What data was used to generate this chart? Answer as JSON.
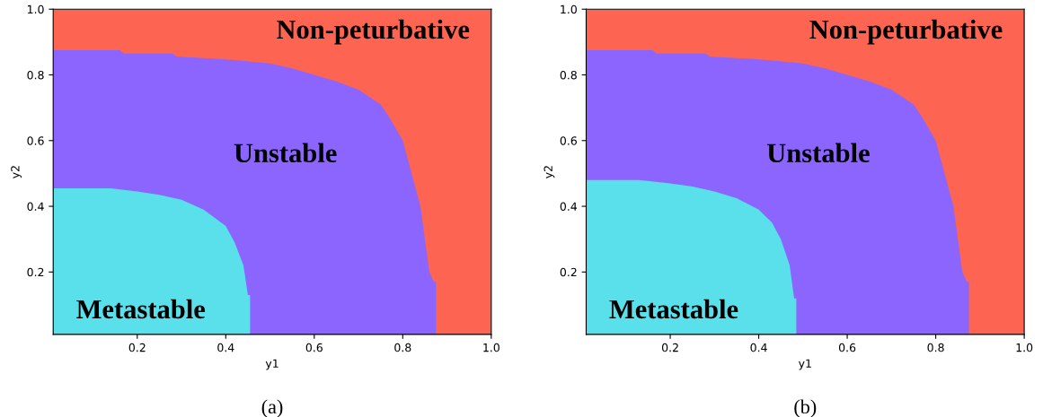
{
  "chart_data": [
    {
      "type": "area",
      "xlabel": "y1",
      "ylabel": "y2",
      "xlim": [
        0.01,
        1.0
      ],
      "ylim": [
        0.01,
        1.0
      ],
      "xticks": [
        0.2,
        0.4,
        0.6,
        0.8,
        {
          "value": 1.0,
          "label": "1.0"
        }
      ],
      "yticks": [
        0.2,
        0.4,
        0.6,
        0.8,
        {
          "value": 1.0,
          "label": "1.0"
        }
      ],
      "grid": false,
      "legend": false,
      "series": [
        {
          "name": "Non-peturbative",
          "color": "#fe6452",
          "x": [
            0.01,
            1.0
          ],
          "values": [
            1.0,
            1.0
          ]
        },
        {
          "name": "Unstable",
          "color": "#8c64fe",
          "x": [
            0.01,
            0.16,
            0.17,
            0.28,
            0.29,
            0.37,
            0.42,
            0.5,
            0.55,
            0.6,
            0.65,
            0.7,
            0.75,
            0.77,
            0.8,
            0.82,
            0.84,
            0.85,
            0.86,
            0.87,
            0.875,
            0.875
          ],
          "values": [
            0.875,
            0.875,
            0.865,
            0.865,
            0.855,
            0.85,
            0.845,
            0.835,
            0.82,
            0.8,
            0.78,
            0.755,
            0.71,
            0.67,
            0.6,
            0.5,
            0.4,
            0.3,
            0.2,
            0.17,
            0.17,
            0.01
          ]
        },
        {
          "name": "Metastable",
          "color": "#5ae0ea",
          "x": [
            0.01,
            0.14,
            0.2,
            0.25,
            0.3,
            0.35,
            0.4,
            0.42,
            0.44,
            0.45,
            0.455,
            0.455
          ],
          "values": [
            0.455,
            0.455,
            0.445,
            0.435,
            0.42,
            0.39,
            0.34,
            0.29,
            0.22,
            0.13,
            0.13,
            0.01
          ]
        }
      ],
      "annotations": [
        "(a)"
      ]
    },
    {
      "type": "area",
      "xlabel": "y1",
      "ylabel": "y2",
      "xlim": [
        0.01,
        1.0
      ],
      "ylim": [
        0.01,
        1.0
      ],
      "xticks": [
        0.2,
        0.4,
        0.6,
        0.8,
        {
          "value": 1.0,
          "label": "1.0"
        }
      ],
      "yticks": [
        0.2,
        0.4,
        0.6,
        0.8,
        {
          "value": 1.0,
          "label": "1.0"
        }
      ],
      "grid": false,
      "legend": false,
      "series": [
        {
          "name": "Non-peturbative",
          "color": "#fe6452",
          "x": [
            0.01,
            1.0
          ],
          "values": [
            1.0,
            1.0
          ]
        },
        {
          "name": "Unstable",
          "color": "#8c64fe",
          "x": [
            0.01,
            0.16,
            0.17,
            0.28,
            0.29,
            0.37,
            0.42,
            0.5,
            0.55,
            0.6,
            0.65,
            0.7,
            0.75,
            0.77,
            0.8,
            0.82,
            0.84,
            0.85,
            0.86,
            0.87,
            0.875,
            0.875
          ],
          "values": [
            0.875,
            0.875,
            0.865,
            0.865,
            0.855,
            0.85,
            0.845,
            0.835,
            0.82,
            0.8,
            0.78,
            0.755,
            0.71,
            0.67,
            0.6,
            0.5,
            0.4,
            0.3,
            0.2,
            0.17,
            0.17,
            0.01
          ]
        },
        {
          "name": "Metastable",
          "color": "#5ae0ea",
          "x": [
            0.01,
            0.13,
            0.2,
            0.25,
            0.3,
            0.35,
            0.4,
            0.43,
            0.45,
            0.47,
            0.48,
            0.485,
            0.485
          ],
          "values": [
            0.48,
            0.48,
            0.47,
            0.46,
            0.445,
            0.425,
            0.39,
            0.35,
            0.3,
            0.22,
            0.12,
            0.12,
            0.01
          ]
        }
      ],
      "annotations": [
        "(b)"
      ]
    }
  ]
}
